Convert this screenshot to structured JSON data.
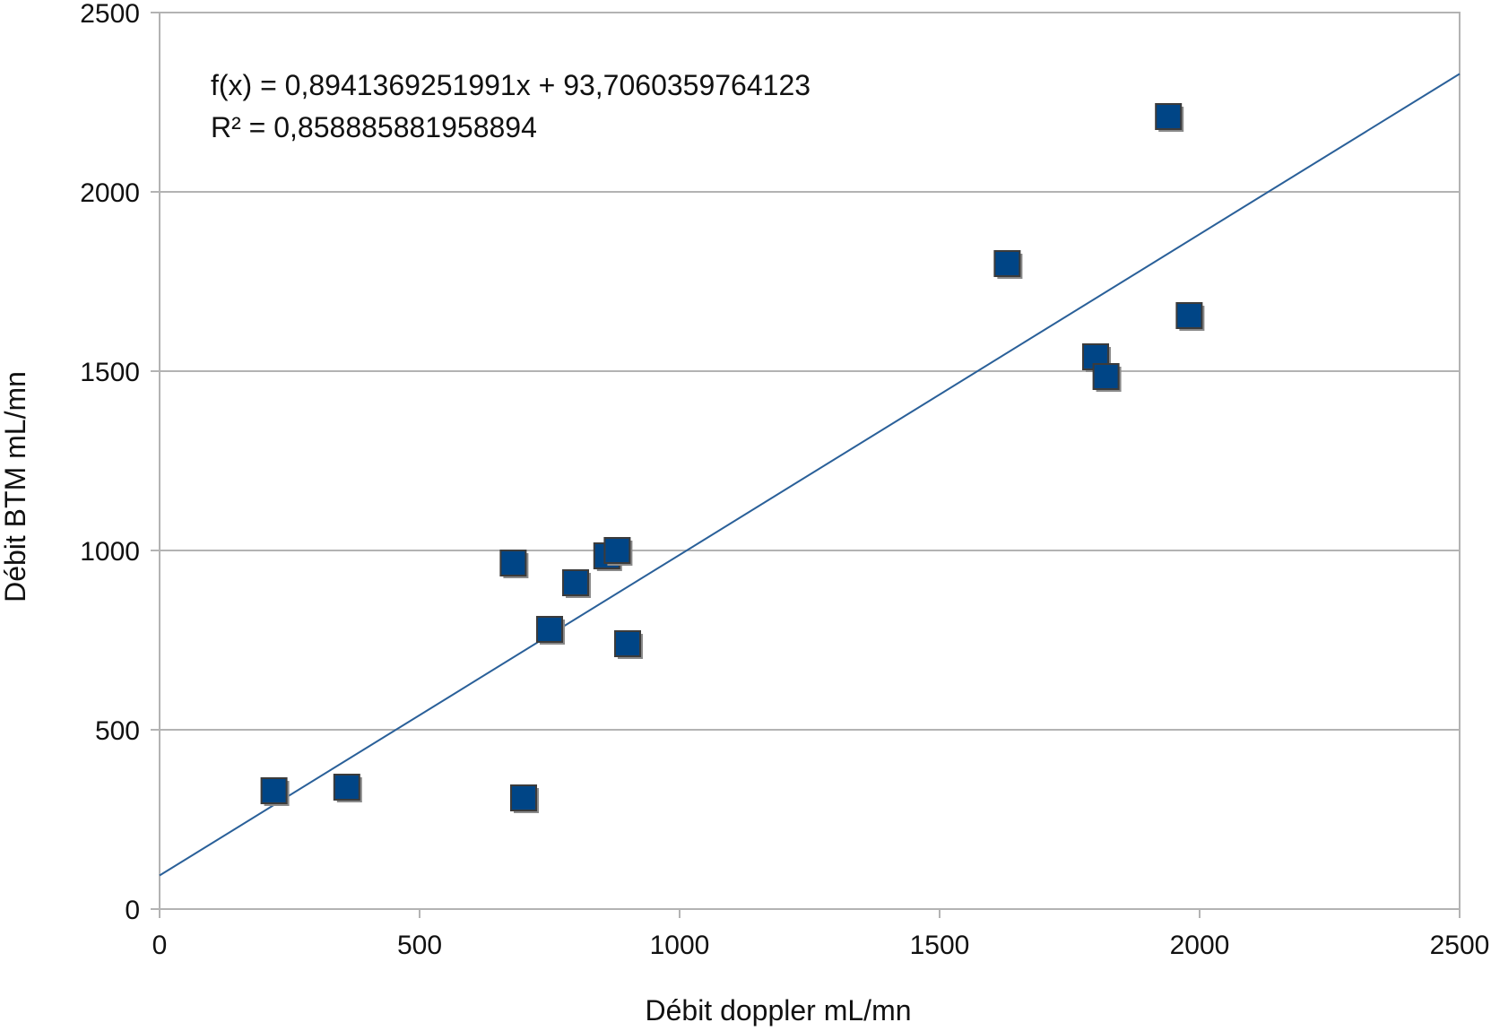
{
  "chart_data": {
    "type": "scatter",
    "title": "",
    "xlabel": "Débit doppler mL/mn",
    "ylabel": "Débit BTM mL/mn",
    "xlim": [
      0,
      2500
    ],
    "ylim": [
      0,
      2500
    ],
    "xticks": [
      "0",
      "500",
      "1000",
      "1500",
      "2000",
      "2500"
    ],
    "yticks": [
      "0",
      "500",
      "1000",
      "1500",
      "2000",
      "2500"
    ],
    "grid": "horizontal",
    "legend": "none",
    "marker_color": "#004586",
    "trendline_color": "#2a6099",
    "points": [
      {
        "x": 220,
        "y": 330
      },
      {
        "x": 360,
        "y": 340
      },
      {
        "x": 680,
        "y": 965
      },
      {
        "x": 700,
        "y": 310
      },
      {
        "x": 750,
        "y": 780
      },
      {
        "x": 800,
        "y": 910
      },
      {
        "x": 860,
        "y": 985
      },
      {
        "x": 880,
        "y": 1000
      },
      {
        "x": 900,
        "y": 740
      },
      {
        "x": 1630,
        "y": 1800
      },
      {
        "x": 1800,
        "y": 1540
      },
      {
        "x": 1820,
        "y": 1485
      },
      {
        "x": 1940,
        "y": 2210
      },
      {
        "x": 1980,
        "y": 1655
      }
    ],
    "trendline": {
      "type": "linear",
      "slope": 0.8941369251991,
      "intercept": 93.7060359764123
    },
    "annotations": [
      "f(x) = 0,8941369251991x + 93,7060359764123",
      "R² = 0,858885881958894"
    ]
  }
}
